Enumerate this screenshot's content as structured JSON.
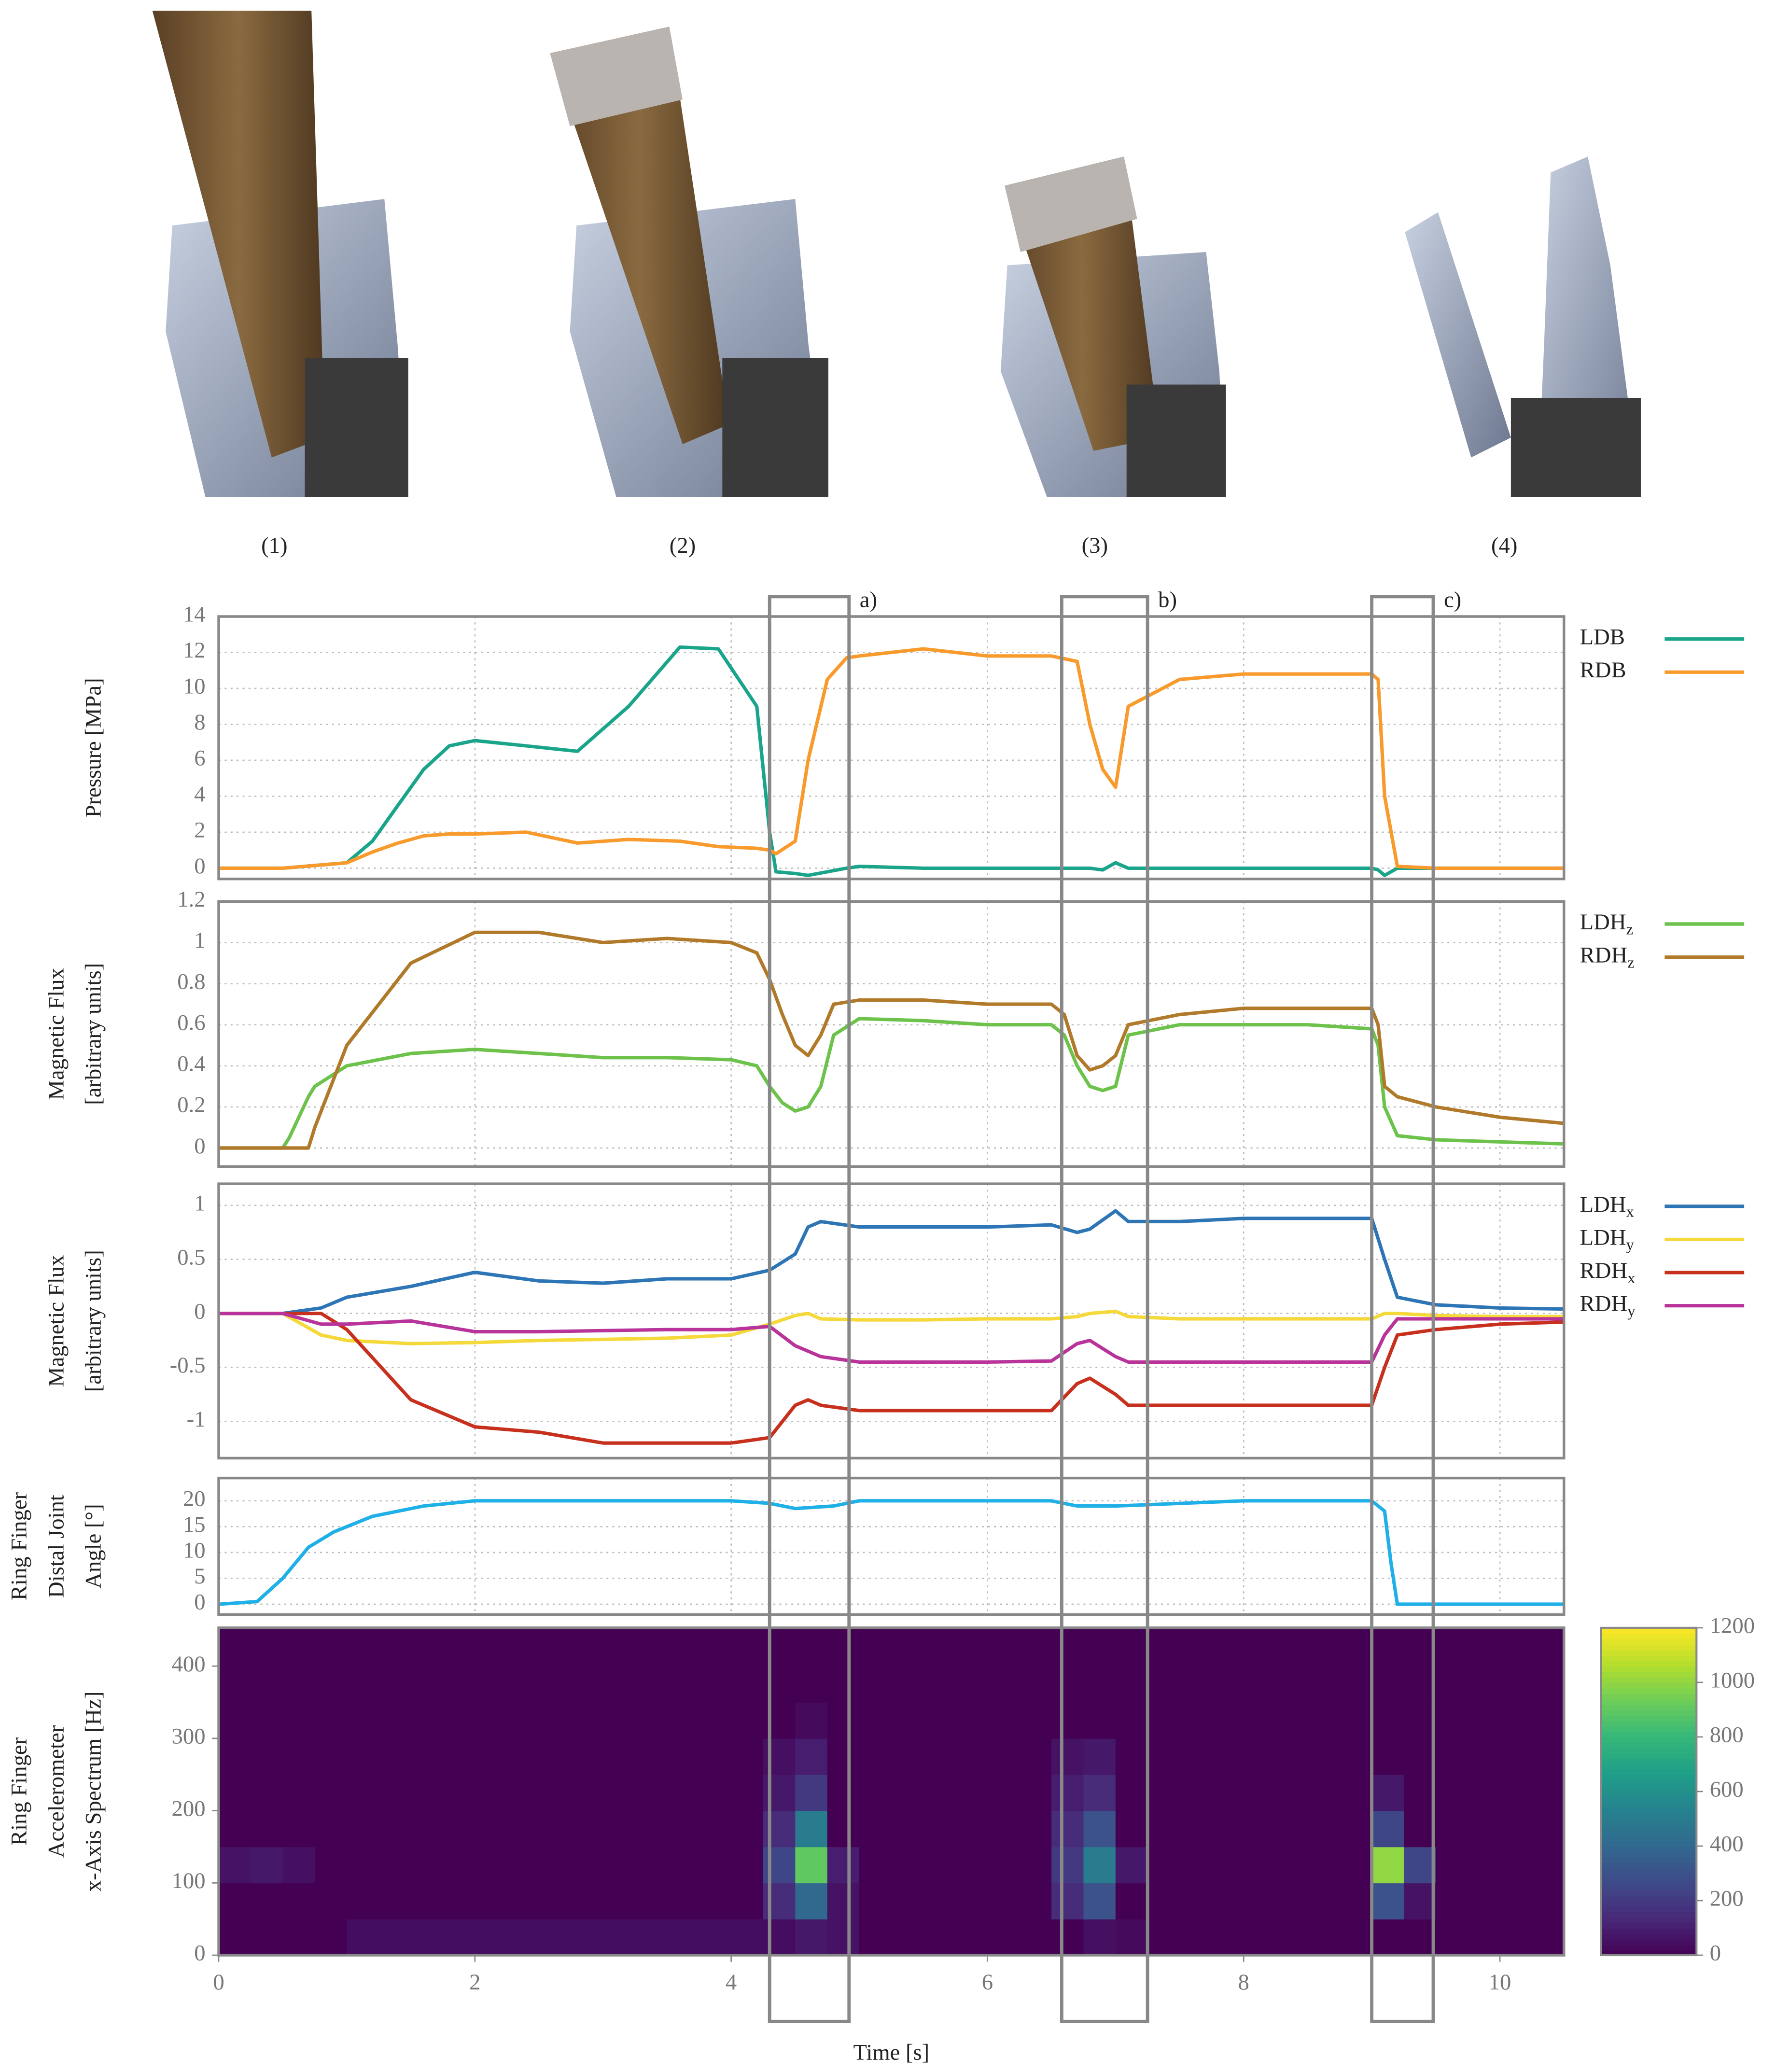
{
  "photos": {
    "labels": [
      "(1)",
      "(2)",
      "(3)",
      "(4)"
    ]
  },
  "regions": {
    "labels": [
      "a)",
      "b)",
      "c)"
    ],
    "x": [
      [
        4.3,
        4.92
      ],
      [
        6.58,
        7.25
      ],
      [
        9.0,
        9.48
      ]
    ]
  },
  "chart_data": [
    {
      "type": "line",
      "ylabel": [
        "Pressure [MPa]"
      ],
      "xlim": [
        0,
        10.5
      ],
      "ylim": [
        -0.6,
        14
      ],
      "xticks": [
        0,
        2,
        4,
        6,
        8,
        10
      ],
      "yticks": [
        0,
        2,
        4,
        6,
        8,
        10,
        12,
        14
      ],
      "grid": true,
      "x": [
        0,
        0.5,
        1,
        1.2,
        1.4,
        1.6,
        1.8,
        2,
        2.4,
        2.8,
        3.2,
        3.6,
        3.9,
        4.2,
        4.3,
        4.35,
        4.5,
        4.6,
        4.75,
        4.9,
        5,
        5.5,
        6,
        6.5,
        6.7,
        6.8,
        6.9,
        7,
        7.1,
        7.5,
        8,
        8.5,
        9,
        9.05,
        9.1,
        9.2,
        9.5,
        10,
        10.5
      ],
      "series": [
        {
          "name": "LDB",
          "color": "#1aa58a",
          "values": [
            0,
            0,
            0.3,
            1.5,
            3.5,
            5.5,
            6.8,
            7.1,
            6.8,
            6.5,
            9,
            12.3,
            12.2,
            9,
            2,
            -0.2,
            -0.3,
            -0.4,
            -0.2,
            0,
            0.1,
            0,
            0,
            0,
            0,
            0,
            -0.1,
            0.3,
            0,
            0,
            0,
            0,
            0,
            -0.1,
            -0.4,
            0,
            0,
            0,
            0
          ]
        },
        {
          "name": "RDB",
          "color": "#f89a2c",
          "values": [
            0,
            0,
            0.3,
            0.9,
            1.4,
            1.8,
            1.9,
            1.9,
            2.0,
            1.4,
            1.6,
            1.5,
            1.2,
            1.1,
            1.0,
            0.8,
            1.5,
            6,
            10.5,
            11.7,
            11.8,
            12.2,
            11.8,
            11.8,
            11.5,
            8,
            5.5,
            4.5,
            9,
            10.5,
            10.8,
            10.8,
            10.8,
            10.5,
            4,
            0.1,
            0,
            0,
            0
          ]
        }
      ]
    },
    {
      "type": "line",
      "ylabel": [
        "Magnetic Flux",
        "[arbitrary units]"
      ],
      "xlim": [
        0,
        10.5
      ],
      "ylim": [
        -0.09,
        1.2
      ],
      "xticks": [
        0,
        2,
        4,
        6,
        8,
        10
      ],
      "yticks": [
        0,
        0.2,
        0.4,
        0.6,
        0.8,
        1,
        1.2
      ],
      "grid": true,
      "x": [
        0,
        0.5,
        0.55,
        0.7,
        0.75,
        1,
        1.5,
        2,
        2.5,
        3,
        3.5,
        4,
        4.2,
        4.3,
        4.4,
        4.5,
        4.6,
        4.7,
        4.8,
        5,
        5.5,
        6,
        6.5,
        6.6,
        6.7,
        6.8,
        6.9,
        7,
        7.1,
        7.5,
        8,
        8.5,
        9,
        9.05,
        9.1,
        9.2,
        9.5,
        10,
        10.5
      ],
      "series": [
        {
          "name": "LDHz",
          "color": "#6cc24a",
          "values": [
            0,
            0,
            0.05,
            0.25,
            0.3,
            0.4,
            0.46,
            0.48,
            0.46,
            0.44,
            0.44,
            0.43,
            0.4,
            0.3,
            0.22,
            0.18,
            0.2,
            0.3,
            0.55,
            0.63,
            0.62,
            0.6,
            0.6,
            0.55,
            0.4,
            0.3,
            0.28,
            0.3,
            0.55,
            0.6,
            0.6,
            0.6,
            0.58,
            0.5,
            0.2,
            0.06,
            0.04,
            0.03,
            0.02
          ]
        },
        {
          "name": "RDHz",
          "color": "#b07a2a",
          "values": [
            0,
            0,
            0,
            0,
            0.1,
            0.5,
            0.9,
            1.05,
            1.05,
            1.0,
            1.02,
            1.0,
            0.95,
            0.82,
            0.65,
            0.5,
            0.45,
            0.55,
            0.7,
            0.72,
            0.72,
            0.7,
            0.7,
            0.65,
            0.45,
            0.38,
            0.4,
            0.45,
            0.6,
            0.65,
            0.68,
            0.68,
            0.68,
            0.6,
            0.3,
            0.25,
            0.2,
            0.15,
            0.12
          ]
        }
      ]
    },
    {
      "type": "line",
      "ylabel": [
        "Magnetic Flux",
        "[arbitrary units]"
      ],
      "xlim": [
        0,
        10.5
      ],
      "ylim": [
        -1.34,
        1.2
      ],
      "xticks": [
        0,
        2,
        4,
        6,
        8,
        10
      ],
      "yticks": [
        -1,
        -0.5,
        0,
        0.5,
        1
      ],
      "grid": true,
      "x": [
        0,
        0.5,
        0.8,
        1,
        1.5,
        2,
        2.5,
        3,
        3.5,
        4,
        4.3,
        4.5,
        4.6,
        4.7,
        5,
        5.5,
        6,
        6.5,
        6.7,
        6.8,
        7,
        7.1,
        7.5,
        8,
        8.5,
        9,
        9.1,
        9.2,
        9.5,
        10,
        10.5
      ],
      "series": [
        {
          "name": "LDHx",
          "color": "#2e75b6",
          "values": [
            0,
            0,
            0.05,
            0.15,
            0.25,
            0.38,
            0.3,
            0.28,
            0.32,
            0.32,
            0.4,
            0.55,
            0.8,
            0.85,
            0.8,
            0.8,
            0.8,
            0.82,
            0.75,
            0.78,
            0.95,
            0.85,
            0.85,
            0.88,
            0.88,
            0.88,
            0.5,
            0.15,
            0.08,
            0.05,
            0.04
          ]
        },
        {
          "name": "LDHy",
          "color": "#f5d83a",
          "values": [
            0,
            0,
            -0.2,
            -0.25,
            -0.28,
            -0.27,
            -0.25,
            -0.24,
            -0.23,
            -0.2,
            -0.1,
            -0.02,
            0,
            -0.05,
            -0.06,
            -0.06,
            -0.05,
            -0.05,
            -0.03,
            0,
            0.02,
            -0.03,
            -0.05,
            -0.05,
            -0.05,
            -0.05,
            0,
            0,
            -0.02,
            -0.03,
            -0.03
          ]
        },
        {
          "name": "RDHx",
          "color": "#c8301e",
          "values": [
            0,
            0,
            0,
            -0.15,
            -0.8,
            -1.05,
            -1.1,
            -1.2,
            -1.2,
            -1.2,
            -1.15,
            -0.85,
            -0.8,
            -0.85,
            -0.9,
            -0.9,
            -0.9,
            -0.9,
            -0.65,
            -0.6,
            -0.75,
            -0.85,
            -0.85,
            -0.85,
            -0.85,
            -0.85,
            -0.5,
            -0.2,
            -0.15,
            -0.1,
            -0.08
          ]
        },
        {
          "name": "RDHy",
          "color": "#b8349a",
          "values": [
            0,
            0,
            -0.1,
            -0.1,
            -0.07,
            -0.17,
            -0.17,
            -0.16,
            -0.15,
            -0.15,
            -0.12,
            -0.3,
            -0.35,
            -0.4,
            -0.45,
            -0.45,
            -0.45,
            -0.44,
            -0.28,
            -0.25,
            -0.4,
            -0.45,
            -0.45,
            -0.45,
            -0.45,
            -0.45,
            -0.2,
            -0.05,
            -0.05,
            -0.05,
            -0.05
          ]
        }
      ]
    },
    {
      "type": "line",
      "ylabel": [
        "Ring Finger",
        "Distal Joint",
        "Angle [°]"
      ],
      "xlim": [
        0,
        10.5
      ],
      "ylim": [
        -2,
        24.4
      ],
      "xticks": [
        0,
        2,
        4,
        6,
        8,
        10
      ],
      "yticks": [
        0,
        5,
        10,
        15,
        20
      ],
      "grid": true,
      "x": [
        0,
        0.3,
        0.5,
        0.7,
        0.9,
        1.2,
        1.6,
        2,
        3,
        4,
        4.3,
        4.5,
        4.8,
        5,
        6,
        6.5,
        6.7,
        6.9,
        7,
        8,
        9,
        9.1,
        9.15,
        9.2,
        10,
        10.5
      ],
      "series": [
        {
          "color": "#1eb0e6",
          "values": [
            0,
            0.5,
            5,
            11,
            14,
            17,
            19,
            20,
            20,
            20,
            19.5,
            18.5,
            19,
            20,
            20,
            20,
            19,
            19,
            19,
            20,
            20,
            18,
            8,
            0,
            0,
            0
          ]
        }
      ]
    },
    {
      "type": "heatmap",
      "ylabel": [
        "Ring Finger",
        "Accelerometer",
        "x-Axis Spectrum [Hz]"
      ],
      "xlabel": "Time [s]",
      "xlim": [
        0,
        10.5
      ],
      "ylim": [
        0,
        453
      ],
      "xticks": [
        0,
        2,
        4,
        6,
        8,
        10
      ],
      "yticks": [
        0,
        100,
        200,
        300,
        400
      ],
      "colormap": "viridis",
      "clim": [
        0,
        1200
      ],
      "cticks": [
        0,
        200,
        400,
        600,
        800,
        1000,
        1200
      ],
      "xbins": [
        0,
        0.25,
        0.5,
        0.75,
        1,
        1.25,
        1.5,
        1.75,
        2,
        2.25,
        2.5,
        2.75,
        3,
        3.25,
        3.5,
        3.75,
        4,
        4.25,
        4.5,
        4.75,
        5,
        5.25,
        5.5,
        5.75,
        6,
        6.25,
        6.5,
        6.75,
        7,
        7.25,
        7.5,
        7.75,
        8,
        8.25,
        8.5,
        8.75,
        9,
        9.25,
        9.5,
        9.75,
        10,
        10.25,
        10.5
      ],
      "ybins": [
        0,
        50,
        100,
        150,
        200,
        250,
        300,
        350,
        400,
        450
      ],
      "values": [
        [
          0,
          0,
          0,
          0,
          40,
          40,
          40,
          40,
          40,
          40,
          40,
          40,
          40,
          40,
          40,
          40,
          40,
          40,
          80,
          60,
          0,
          0,
          0,
          0,
          0,
          0,
          0,
          50,
          30,
          0,
          0,
          0,
          0,
          0,
          0,
          0,
          0,
          0,
          0,
          0,
          0,
          0
        ],
        [
          0,
          0,
          0,
          0,
          0,
          0,
          0,
          0,
          0,
          0,
          0,
          0,
          0,
          0,
          0,
          0,
          0,
          150,
          400,
          60,
          0,
          0,
          0,
          0,
          0,
          0,
          150,
          300,
          0,
          0,
          0,
          0,
          0,
          0,
          0,
          0,
          300,
          60,
          0,
          0,
          0,
          0
        ],
        [
          60,
          80,
          50,
          0,
          0,
          0,
          0,
          0,
          0,
          0,
          0,
          0,
          0,
          0,
          0,
          0,
          0,
          250,
          900,
          100,
          0,
          0,
          0,
          0,
          0,
          0,
          200,
          500,
          80,
          0,
          0,
          0,
          0,
          0,
          0,
          0,
          1000,
          250,
          0,
          0,
          0,
          0
        ],
        [
          0,
          0,
          0,
          0,
          0,
          0,
          0,
          0,
          0,
          0,
          0,
          0,
          0,
          0,
          0,
          0,
          0,
          150,
          500,
          0,
          0,
          0,
          0,
          0,
          0,
          0,
          150,
          300,
          0,
          0,
          0,
          0,
          0,
          0,
          0,
          0,
          250,
          0,
          0,
          0,
          0,
          0
        ],
        [
          0,
          0,
          0,
          0,
          0,
          0,
          0,
          0,
          0,
          0,
          0,
          0,
          0,
          0,
          0,
          0,
          0,
          80,
          200,
          0,
          0,
          0,
          0,
          0,
          0,
          0,
          100,
          150,
          0,
          0,
          0,
          0,
          0,
          0,
          0,
          0,
          80,
          0,
          0,
          0,
          0,
          0
        ],
        [
          0,
          0,
          0,
          0,
          0,
          0,
          0,
          0,
          0,
          0,
          0,
          0,
          0,
          0,
          0,
          0,
          0,
          50,
          100,
          0,
          0,
          0,
          0,
          0,
          0,
          0,
          60,
          80,
          0,
          0,
          0,
          0,
          0,
          0,
          0,
          0,
          0,
          0,
          0,
          0,
          0,
          0
        ],
        [
          0,
          0,
          0,
          0,
          0,
          0,
          0,
          0,
          0,
          0,
          0,
          0,
          0,
          0,
          0,
          0,
          0,
          0,
          30,
          0,
          0,
          0,
          0,
          0,
          0,
          0,
          0,
          0,
          0,
          0,
          0,
          0,
          0,
          0,
          0,
          0,
          0,
          0,
          0,
          0,
          0,
          0
        ],
        [
          0,
          0,
          0,
          0,
          0,
          0,
          0,
          0,
          0,
          0,
          0,
          0,
          0,
          0,
          0,
          0,
          0,
          0,
          0,
          0,
          0,
          0,
          0,
          0,
          0,
          0,
          0,
          0,
          0,
          0,
          0,
          0,
          0,
          0,
          0,
          0,
          0,
          0,
          0,
          0,
          0,
          0
        ],
        [
          0,
          0,
          0,
          0,
          0,
          0,
          0,
          0,
          0,
          0,
          0,
          0,
          0,
          0,
          0,
          0,
          0,
          0,
          0,
          0,
          0,
          0,
          0,
          0,
          0,
          0,
          0,
          0,
          0,
          0,
          0,
          0,
          0,
          0,
          0,
          0,
          0,
          0,
          0,
          0,
          0,
          0
        ]
      ]
    }
  ]
}
